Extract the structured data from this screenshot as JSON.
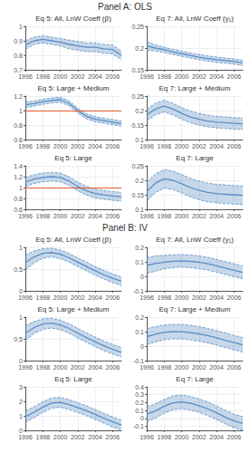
{
  "chart_data": [
    {
      "type": "line",
      "title": "Eq 5: All, LnW Coeff (β)",
      "annotations": [
        "Panel A: OLS"
      ],
      "x": [
        1996,
        1997,
        1998,
        1999,
        2000,
        2001,
        2002,
        2003,
        2004,
        2005,
        2006,
        2007
      ],
      "values": [
        0.87,
        0.9,
        0.91,
        0.9,
        0.89,
        0.875,
        0.865,
        0.855,
        0.855,
        0.845,
        0.84,
        0.8
      ],
      "upper": [
        0.9,
        0.925,
        0.935,
        0.925,
        0.915,
        0.905,
        0.895,
        0.885,
        0.885,
        0.875,
        0.87,
        0.83
      ],
      "lower": [
        0.84,
        0.875,
        0.885,
        0.875,
        0.865,
        0.845,
        0.835,
        0.825,
        0.825,
        0.815,
        0.81,
        0.77
      ],
      "xlim": [
        1996,
        2007
      ],
      "xticks": [
        1996,
        1998,
        2000,
        2002,
        2004,
        2006
      ],
      "ylim": [
        0.7,
        1.0
      ],
      "yticks": [
        0.7,
        0.8,
        0.9,
        1.0
      ],
      "grid": true,
      "color": "#5b8ec4"
    },
    {
      "type": "line",
      "title": "Eq 7: All, LnW Coeff (γ₁)",
      "x": [
        1996,
        1997,
        1998,
        1999,
        2000,
        2001,
        2002,
        2003,
        2004,
        2005,
        2006,
        2007
      ],
      "values": [
        0.205,
        0.2,
        0.196,
        0.191,
        0.187,
        0.183,
        0.179,
        0.176,
        0.173,
        0.171,
        0.169,
        0.166
      ],
      "upper": [
        0.215,
        0.207,
        0.202,
        0.197,
        0.193,
        0.189,
        0.185,
        0.182,
        0.179,
        0.177,
        0.175,
        0.172
      ],
      "lower": [
        0.195,
        0.193,
        0.19,
        0.185,
        0.181,
        0.177,
        0.173,
        0.17,
        0.167,
        0.165,
        0.163,
        0.16
      ],
      "xlim": [
        1996,
        2007
      ],
      "xticks": [
        1996,
        1998,
        2000,
        2002,
        2004,
        2006
      ],
      "ylim": [
        0.15,
        0.25
      ],
      "yticks": [
        0.15,
        0.2,
        0.25
      ],
      "grid": true,
      "color": "#5b8ec4"
    },
    {
      "type": "line",
      "title": "Eq 5: Large + Medium",
      "x": [
        1996,
        1997,
        1998,
        1999,
        2000,
        2001,
        2002,
        2003,
        2004,
        2005,
        2006,
        2007
      ],
      "values": [
        1.08,
        1.095,
        1.12,
        1.14,
        1.15,
        1.1,
        1.0,
        0.92,
        0.88,
        0.86,
        0.84,
        0.82
      ],
      "upper": [
        1.12,
        1.13,
        1.155,
        1.175,
        1.185,
        1.135,
        1.035,
        0.955,
        0.915,
        0.895,
        0.875,
        0.855
      ],
      "lower": [
        1.04,
        1.06,
        1.085,
        1.105,
        1.115,
        1.065,
        0.965,
        0.885,
        0.845,
        0.825,
        0.805,
        0.785
      ],
      "xlim": [
        1996,
        2007
      ],
      "xticks": [
        1996,
        1998,
        2000,
        2002,
        2004,
        2006
      ],
      "ylim": [
        0.6,
        1.2
      ],
      "yticks": [
        0.6,
        0.8,
        1.0,
        1.2
      ],
      "grid": true,
      "color": "#5b8ec4",
      "hline": {
        "value": 1.0,
        "color": "#e05a2b"
      }
    },
    {
      "type": "line",
      "title": "Eq 7: Large + Medium",
      "x": [
        1996,
        1997,
        1998,
        1999,
        2000,
        2001,
        2002,
        2003,
        2004,
        2005,
        2006,
        2007
      ],
      "values": [
        0.185,
        0.205,
        0.215,
        0.205,
        0.19,
        0.178,
        0.17,
        0.164,
        0.16,
        0.158,
        0.156,
        0.154
      ],
      "upper": [
        0.205,
        0.225,
        0.235,
        0.225,
        0.21,
        0.198,
        0.19,
        0.184,
        0.18,
        0.178,
        0.176,
        0.174
      ],
      "lower": [
        0.165,
        0.185,
        0.195,
        0.185,
        0.17,
        0.158,
        0.15,
        0.144,
        0.14,
        0.138,
        0.136,
        0.134
      ],
      "xlim": [
        1996,
        2007
      ],
      "xticks": [
        1996,
        1998,
        2000,
        2002,
        2004,
        2006
      ],
      "ylim": [
        0.1,
        0.25
      ],
      "yticks": [
        0.1,
        0.15,
        0.2,
        0.25
      ],
      "grid": true,
      "color": "#5b8ec4"
    },
    {
      "type": "line",
      "title": "Eq 5: Large",
      "x": [
        1996,
        1997,
        1998,
        1999,
        2000,
        2001,
        2002,
        2003,
        2004,
        2005,
        2006,
        2007
      ],
      "values": [
        1.1,
        1.155,
        1.185,
        1.2,
        1.185,
        1.12,
        1.02,
        0.94,
        0.89,
        0.865,
        0.845,
        0.83
      ],
      "upper": [
        1.185,
        1.235,
        1.265,
        1.28,
        1.265,
        1.2,
        1.1,
        1.02,
        0.97,
        0.945,
        0.925,
        0.91
      ],
      "lower": [
        1.015,
        1.075,
        1.105,
        1.12,
        1.105,
        1.04,
        0.94,
        0.86,
        0.81,
        0.785,
        0.765,
        0.75
      ],
      "xlim": [
        1996,
        2007
      ],
      "xticks": [
        1996,
        1998,
        2000,
        2002,
        2004,
        2006
      ],
      "ylim": [
        0.6,
        1.4
      ],
      "yticks": [
        0.6,
        0.8,
        1.0,
        1.2,
        1.4
      ],
      "grid": true,
      "color": "#5b8ec4",
      "hline": {
        "value": 1.0,
        "color": "#e05a2b"
      }
    },
    {
      "type": "line",
      "title": "Eq 7: Large",
      "x": [
        1996,
        1997,
        1998,
        1999,
        2000,
        2001,
        2002,
        2003,
        2004,
        2005,
        2006,
        2007
      ],
      "values": [
        0.162,
        0.19,
        0.205,
        0.2,
        0.188,
        0.175,
        0.165,
        0.158,
        0.154,
        0.152,
        0.15,
        0.148
      ],
      "upper": [
        0.195,
        0.222,
        0.237,
        0.232,
        0.22,
        0.207,
        0.197,
        0.19,
        0.186,
        0.184,
        0.182,
        0.18
      ],
      "lower": [
        0.129,
        0.158,
        0.173,
        0.168,
        0.156,
        0.143,
        0.133,
        0.126,
        0.122,
        0.12,
        0.118,
        0.116
      ],
      "xlim": [
        1996,
        2007
      ],
      "xticks": [
        1996,
        1998,
        2000,
        2002,
        2004,
        2006
      ],
      "ylim": [
        0.1,
        0.25
      ],
      "yticks": [
        0.1,
        0.15,
        0.2,
        0.25
      ],
      "grid": true,
      "color": "#5b8ec4"
    },
    {
      "type": "line",
      "title": "Eq 5: All, LnW Coeff (β)",
      "annotations": [
        "Panel B: IV"
      ],
      "x": [
        1996,
        1997,
        1998,
        1999,
        2000,
        2001,
        2002,
        2003,
        2004,
        2005,
        2006,
        2007
      ],
      "values": [
        0.65,
        0.78,
        0.86,
        0.88,
        0.84,
        0.76,
        0.66,
        0.56,
        0.46,
        0.37,
        0.29,
        0.22
      ],
      "upper": [
        0.82,
        0.92,
        0.97,
        0.98,
        0.94,
        0.86,
        0.76,
        0.66,
        0.56,
        0.47,
        0.39,
        0.32
      ],
      "lower": [
        0.48,
        0.64,
        0.75,
        0.78,
        0.74,
        0.66,
        0.56,
        0.46,
        0.36,
        0.27,
        0.19,
        0.12
      ],
      "xlim": [
        1996,
        2007
      ],
      "xticks": [
        1996,
        1998,
        2000,
        2002,
        2004,
        2006
      ],
      "ylim": [
        0.0,
        1.0
      ],
      "yticks": [
        0.0,
        0.5,
        1.0
      ],
      "grid": true,
      "color": "#5b8ec4"
    },
    {
      "type": "line",
      "title": "Eq 7: All, LnW Coeff (γ₁)",
      "x": [
        1996,
        1997,
        1998,
        1999,
        2000,
        2001,
        2002,
        2003,
        2004,
        2005,
        2006,
        2007
      ],
      "values": [
        0.075,
        0.088,
        0.098,
        0.104,
        0.107,
        0.104,
        0.097,
        0.087,
        0.073,
        0.057,
        0.042,
        0.027
      ],
      "upper": [
        0.13,
        0.14,
        0.145,
        0.148,
        0.15,
        0.148,
        0.141,
        0.131,
        0.117,
        0.101,
        0.086,
        0.071
      ],
      "lower": [
        0.02,
        0.036,
        0.051,
        0.06,
        0.064,
        0.06,
        0.053,
        0.043,
        0.029,
        0.013,
        -0.002,
        -0.017
      ],
      "xlim": [
        1996,
        2007
      ],
      "xticks": [
        1996,
        1998,
        2000,
        2002,
        2004,
        2006
      ],
      "ylim": [
        -0.1,
        0.2
      ],
      "yticks": [
        -0.1,
        0.0,
        0.1,
        0.2
      ],
      "grid": true,
      "color": "#5b8ec4"
    },
    {
      "type": "line",
      "title": "Eq 5: Large + Medium",
      "x": [
        1996,
        1997,
        1998,
        1999,
        2000,
        2001,
        2002,
        2003,
        2004,
        2005,
        2006,
        2007
      ],
      "values": [
        0.63,
        0.76,
        0.84,
        0.86,
        0.82,
        0.74,
        0.63,
        0.53,
        0.43,
        0.34,
        0.26,
        0.19
      ],
      "upper": [
        0.8,
        0.9,
        0.96,
        0.97,
        0.93,
        0.85,
        0.74,
        0.64,
        0.54,
        0.45,
        0.37,
        0.3
      ],
      "lower": [
        0.46,
        0.62,
        0.72,
        0.75,
        0.71,
        0.63,
        0.52,
        0.42,
        0.32,
        0.23,
        0.15,
        0.08
      ],
      "xlim": [
        1996,
        2007
      ],
      "xticks": [
        1996,
        1998,
        2000,
        2002,
        2004,
        2006
      ],
      "ylim": [
        0.0,
        1.0
      ],
      "yticks": [
        0.0,
        0.5,
        1.0
      ],
      "grid": true,
      "color": "#5b8ec4"
    },
    {
      "type": "line",
      "title": "Eq 7: Large + Medium",
      "x": [
        1996,
        1997,
        1998,
        1999,
        2000,
        2001,
        2002,
        2003,
        2004,
        2005,
        2006,
        2007
      ],
      "values": [
        0.065,
        0.082,
        0.094,
        0.1,
        0.099,
        0.093,
        0.084,
        0.072,
        0.057,
        0.04,
        0.024,
        0.009
      ],
      "upper": [
        0.12,
        0.135,
        0.145,
        0.15,
        0.149,
        0.143,
        0.134,
        0.122,
        0.107,
        0.09,
        0.074,
        0.059
      ],
      "lower": [
        0.01,
        0.029,
        0.043,
        0.05,
        0.049,
        0.043,
        0.034,
        0.022,
        0.007,
        -0.01,
        -0.026,
        -0.041
      ],
      "xlim": [
        1996,
        2007
      ],
      "xticks": [
        1996,
        1998,
        2000,
        2002,
        2004,
        2006
      ],
      "ylim": [
        -0.1,
        0.2
      ],
      "yticks": [
        -0.1,
        0.0,
        0.1,
        0.2
      ],
      "grid": true,
      "color": "#5b8ec4"
    },
    {
      "type": "line",
      "title": "Eq 5: Large",
      "x": [
        1996,
        1997,
        1998,
        1999,
        2000,
        2001,
        2002,
        2003,
        2004,
        2005,
        2006,
        2007
      ],
      "values": [
        0.95,
        1.25,
        1.6,
        1.88,
        1.93,
        1.78,
        1.57,
        1.35,
        1.1,
        0.83,
        0.58,
        0.37
      ],
      "upper": [
        1.35,
        1.63,
        1.97,
        2.23,
        2.27,
        2.12,
        1.91,
        1.69,
        1.44,
        1.17,
        0.92,
        0.71
      ],
      "lower": [
        0.55,
        0.87,
        1.23,
        1.53,
        1.59,
        1.44,
        1.23,
        1.01,
        0.76,
        0.49,
        0.24,
        0.03
      ],
      "xlim": [
        1996,
        2007
      ],
      "xticks": [
        1996,
        1998,
        2000,
        2002,
        2004,
        2006
      ],
      "ylim": [
        0.0,
        3.0
      ],
      "yticks": [
        0.0,
        1.0,
        2.0,
        3.0
      ],
      "grid": true,
      "color": "#5b8ec4"
    },
    {
      "type": "line",
      "title": "Eq 7: Large",
      "x": [
        1996,
        1997,
        1998,
        1999,
        2000,
        2001,
        2002,
        2003,
        2004,
        2005,
        2006,
        2007
      ],
      "values": [
        0.055,
        0.095,
        0.155,
        0.198,
        0.21,
        0.192,
        0.162,
        0.122,
        0.072,
        0.018,
        -0.032,
        -0.062
      ],
      "upper": [
        0.148,
        0.185,
        0.242,
        0.285,
        0.296,
        0.278,
        0.248,
        0.208,
        0.158,
        0.104,
        0.054,
        0.024
      ],
      "lower": [
        -0.038,
        0.005,
        0.068,
        0.111,
        0.124,
        0.106,
        0.076,
        0.036,
        -0.014,
        -0.068,
        -0.118,
        -0.148
      ],
      "xlim": [
        1996,
        2007
      ],
      "xticks": [
        1996,
        1998,
        2000,
        2002,
        2004,
        2006
      ],
      "ylim": [
        -0.15,
        0.4
      ],
      "yticks": [
        -0.1,
        0.0,
        0.1,
        0.2,
        0.3,
        0.4
      ],
      "grid": true,
      "color": "#5b8ec4"
    }
  ]
}
